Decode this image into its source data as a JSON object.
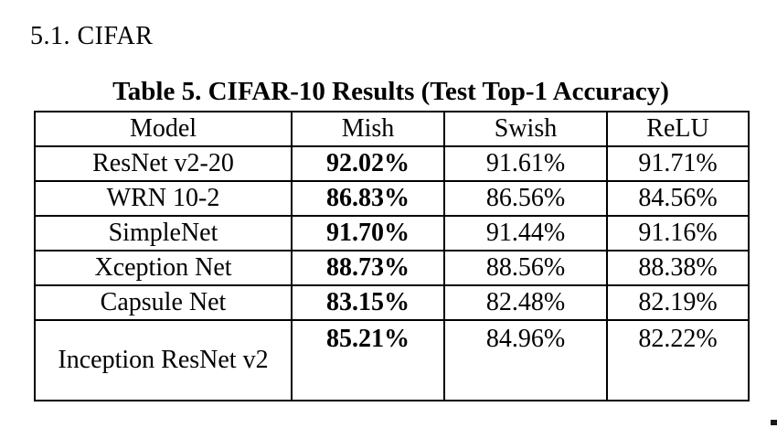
{
  "section": {
    "heading": "5.1. CIFAR"
  },
  "table": {
    "caption": "Table 5. CIFAR-10 Results (Test Top-1 Accuracy)",
    "columns": [
      "Model",
      "Mish",
      "Swish",
      "ReLU"
    ],
    "rows": [
      [
        "ResNet v2-20",
        "92.02%",
        "91.61%",
        "91.71%"
      ],
      [
        "WRN 10-2",
        "86.83%",
        "86.56%",
        "84.56%"
      ],
      [
        "SimpleNet",
        "91.70%",
        "91.44%",
        "91.16%"
      ],
      [
        "Xception Net",
        "88.73%",
        "88.56%",
        "88.38%"
      ],
      [
        "Capsule Net",
        "83.15%",
        "82.48%",
        "82.19%"
      ],
      [
        "Inception ResNet v2",
        "85.21%",
        "84.96%",
        "82.22%"
      ]
    ],
    "emphasis": {
      "bold_column": "Mish"
    },
    "text_color": "#000000",
    "border_color": "#000000",
    "background_color": "#ffffff"
  }
}
